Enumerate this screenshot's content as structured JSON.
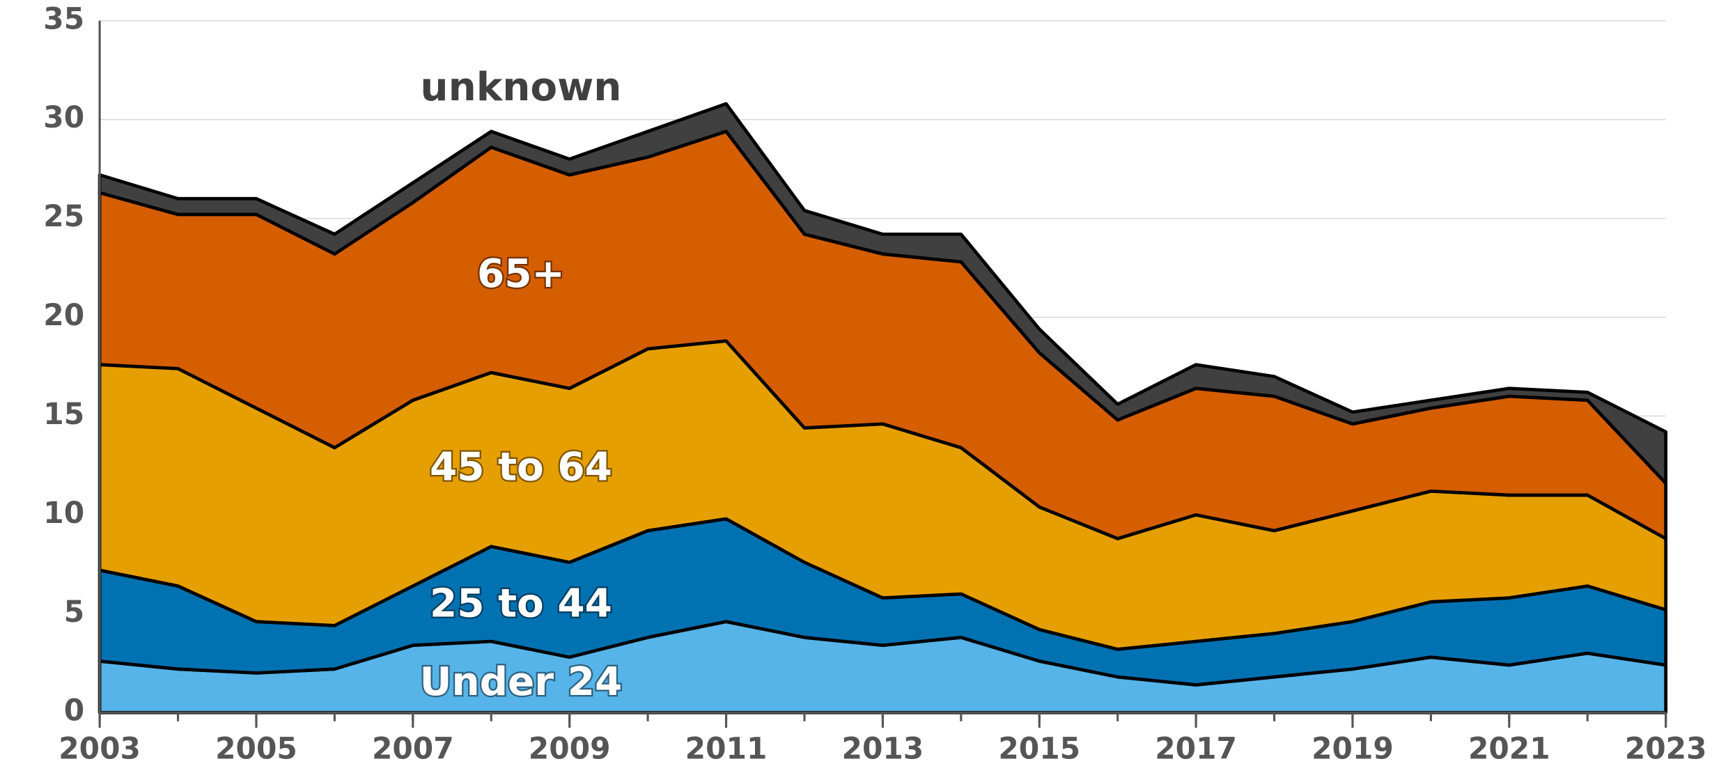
{
  "chart_data": {
    "type": "stacked_area",
    "x": [
      2003,
      2004,
      2005,
      2006,
      2007,
      2008,
      2009,
      2010,
      2011,
      2012,
      2013,
      2014,
      2015,
      2016,
      2017,
      2018,
      2019,
      2020,
      2021,
      2022,
      2023
    ],
    "series": [
      {
        "name": "Under 24",
        "color": "#56b4e9",
        "values": [
          2.6,
          2.2,
          2.0,
          2.2,
          3.4,
          3.6,
          2.8,
          3.8,
          4.6,
          3.8,
          3.4,
          3.8,
          2.6,
          1.8,
          1.4,
          1.8,
          2.2,
          2.8,
          2.4,
          3.0,
          2.4
        ]
      },
      {
        "name": "25 to 44",
        "color": "#0072b2",
        "values": [
          4.6,
          4.2,
          2.6,
          2.2,
          3.0,
          4.8,
          4.8,
          5.4,
          5.2,
          3.8,
          2.4,
          2.2,
          1.6,
          1.4,
          2.2,
          2.2,
          2.4,
          2.8,
          3.4,
          3.4,
          2.8
        ]
      },
      {
        "name": "45 to 64",
        "color": "#e69f00",
        "values": [
          10.4,
          11.0,
          10.8,
          9.0,
          9.4,
          8.8,
          8.8,
          9.2,
          9.0,
          6.8,
          8.8,
          7.4,
          6.2,
          5.6,
          6.4,
          5.2,
          5.6,
          5.6,
          5.2,
          4.6,
          3.6
        ]
      },
      {
        "name": "65+",
        "color": "#d55e00",
        "values": [
          8.7,
          7.8,
          9.8,
          9.8,
          10.0,
          11.4,
          10.8,
          9.7,
          10.6,
          9.8,
          8.6,
          9.4,
          7.8,
          6.0,
          6.4,
          6.8,
          4.4,
          4.2,
          5.0,
          4.8,
          2.8
        ]
      },
      {
        "name": "unknown",
        "color": "#404040",
        "values": [
          0.9,
          0.8,
          0.8,
          1.0,
          1.0,
          0.8,
          0.8,
          1.3,
          1.4,
          1.2,
          1.0,
          1.4,
          1.2,
          0.8,
          1.2,
          1.0,
          0.6,
          0.4,
          0.4,
          0.4,
          2.6
        ]
      }
    ],
    "xlim": [
      2003,
      2023
    ],
    "xticks": [
      2003,
      2005,
      2007,
      2009,
      2011,
      2013,
      2015,
      2017,
      2019,
      2021,
      2023
    ],
    "ylim": [
      0,
      35
    ],
    "yticks": [
      0,
      5,
      10,
      15,
      20,
      25,
      30,
      35
    ],
    "grid": true
  }
}
